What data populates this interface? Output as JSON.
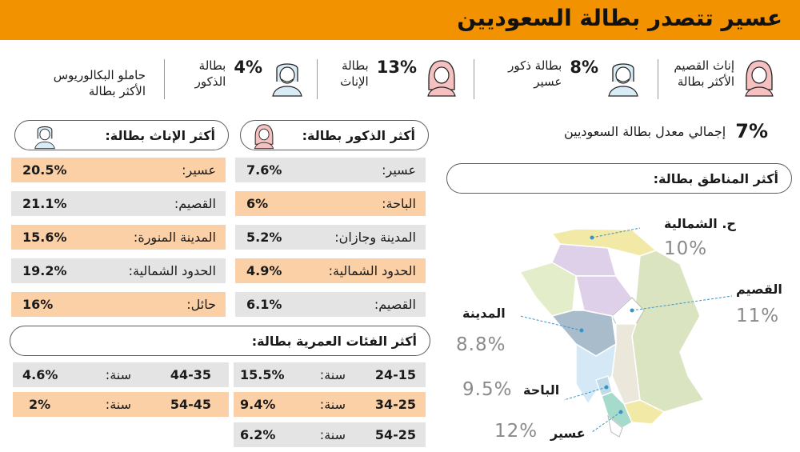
{
  "title": "عسير تتصدر بطالة السعوديين",
  "stats": [
    {
      "label_line1": "إناث القصيم",
      "label_line2": "الأكثر بطالة"
    },
    {
      "pct": "8%",
      "label_line1": "بطالة ذكور",
      "label_line2": "عسير"
    },
    {
      "pct": "13%",
      "label_line1": "بطالة",
      "label_line2": "الإناث"
    },
    {
      "pct": "4%",
      "label_line1": "بطالة",
      "label_line2": "الذكور"
    },
    {
      "label_line1": "حاملو البكالوريوس",
      "label_line2": "الأكثر بطالة"
    }
  ],
  "overall": {
    "pct": "7%",
    "label": "إجمالي معدل بطالة السعوديين"
  },
  "males": {
    "title": "أكثر الذكور بطالة:",
    "rows": [
      {
        "name": "عسير:",
        "value": "7.6%"
      },
      {
        "name": "الباحة:",
        "value": "6%"
      },
      {
        "name": "المدينة وجازان:",
        "value": "5.2%"
      },
      {
        "name": "الحدود الشمالية:",
        "value": "4.9%"
      },
      {
        "name": "القصيم:",
        "value": "6.1%"
      }
    ]
  },
  "females": {
    "title": "أكثر الإناث بطالة:",
    "rows": [
      {
        "name": "عسير:",
        "value": "20.5%"
      },
      {
        "name": "القصيم:",
        "value": "21.1%"
      },
      {
        "name": "المدينة المنورة:",
        "value": "15.6%"
      },
      {
        "name": "الحدود الشمالية:",
        "value": "19.2%"
      },
      {
        "name": "حائل:",
        "value": "16%"
      }
    ]
  },
  "ages": {
    "title": "أكثر الفئات العمرية بطالة:",
    "unit": "سنة:",
    "right_rows": [
      {
        "range": "24-15",
        "value": "15.5%"
      },
      {
        "range": "34-25",
        "value": "9.4%"
      },
      {
        "range": "54-25",
        "value": "6.2%"
      }
    ],
    "left_rows": [
      {
        "range": "44-35",
        "value": "4.6%"
      },
      {
        "range": "54-45",
        "value": "2%"
      }
    ]
  },
  "regions_title": "أكثر المناطق بطالة:",
  "map_regions": [
    {
      "name": "ح. الشمالية",
      "value": "10%"
    },
    {
      "name": "القصيم",
      "value": "11%"
    },
    {
      "name": "المدينة",
      "value": "8.8%"
    },
    {
      "name": "الباحة",
      "value": "9.5%"
    },
    {
      "name": "عسير",
      "value": "12%"
    }
  ],
  "colors": {
    "header": "#f39200",
    "highlight_row": "#fbd0a6",
    "plain_row": "#e4e4e4",
    "map_connector": "#3a93c8"
  }
}
